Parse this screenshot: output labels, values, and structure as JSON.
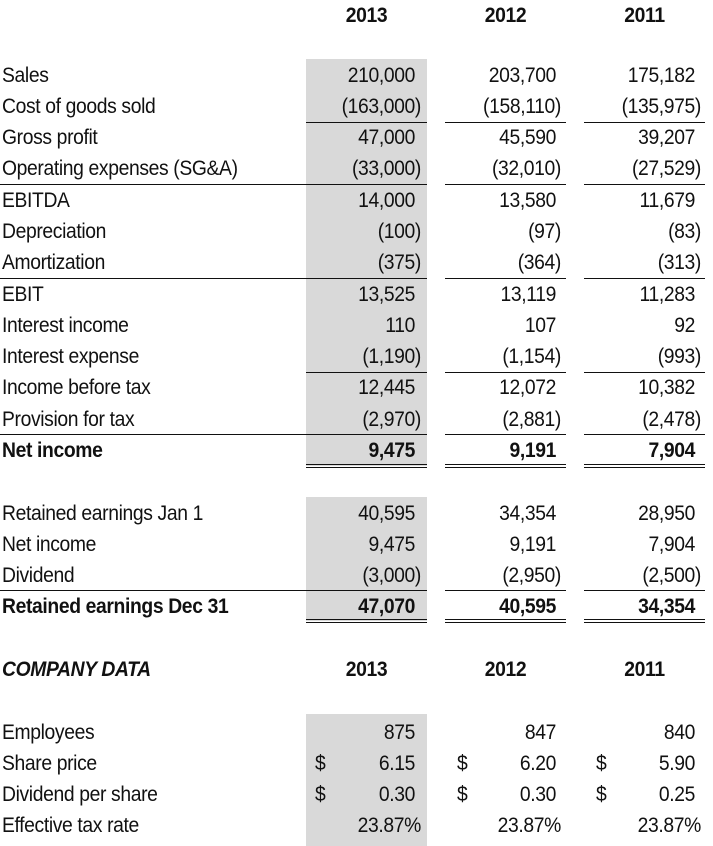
{
  "income_statement": {
    "years": [
      "2013",
      "2012",
      "2011"
    ],
    "rows": [
      {
        "label": "Sales",
        "values": [
          "210,000",
          "203,700",
          "175,182"
        ]
      },
      {
        "label": "Cost of goods sold",
        "values": [
          "(163,000)",
          "(158,110)",
          "(135,975)"
        ]
      },
      {
        "label": "Gross profit",
        "values": [
          "47,000",
          "45,590",
          "39,207"
        ]
      },
      {
        "label": "Operating expenses (SG&A)",
        "values": [
          "(33,000)",
          "(32,010)",
          "(27,529)"
        ]
      },
      {
        "label": "EBITDA",
        "values": [
          "14,000",
          "13,580",
          "11,679"
        ]
      },
      {
        "label": "Depreciation",
        "values": [
          "(100)",
          "(97)",
          "(83)"
        ]
      },
      {
        "label": "Amortization",
        "values": [
          "(375)",
          "(364)",
          "(313)"
        ]
      },
      {
        "label": "EBIT",
        "values": [
          "13,525",
          "13,119",
          "11,283"
        ]
      },
      {
        "label": "Interest income",
        "values": [
          "110",
          "107",
          "92"
        ]
      },
      {
        "label": "Interest expense",
        "values": [
          "(1,190)",
          "(1,154)",
          "(993)"
        ]
      },
      {
        "label": "Income before tax",
        "values": [
          "12,445",
          "12,072",
          "10,382"
        ]
      },
      {
        "label": "Provision for tax",
        "values": [
          "(2,970)",
          "(2,881)",
          "(2,478)"
        ]
      },
      {
        "label": "Net income",
        "values": [
          "9,475",
          "9,191",
          "7,904"
        ]
      }
    ]
  },
  "retained_earnings": {
    "rows": [
      {
        "label": "Retained earnings Jan 1",
        "values": [
          "40,595",
          "34,354",
          "28,950"
        ]
      },
      {
        "label": "Net income",
        "values": [
          "9,475",
          "9,191",
          "7,904"
        ]
      },
      {
        "label": "Dividend",
        "values": [
          "(3,000)",
          "(2,950)",
          "(2,500)"
        ]
      },
      {
        "label": "Retained earnings Dec 31",
        "values": [
          "47,070",
          "40,595",
          "34,354"
        ]
      }
    ]
  },
  "company_data": {
    "title": "COMPANY DATA",
    "years": [
      "2013",
      "2012",
      "2011"
    ],
    "currency_symbol": "$",
    "rows": [
      {
        "label": "Employees",
        "values": [
          "875",
          "847",
          "840"
        ]
      },
      {
        "label": "Share price",
        "values": [
          "6.15",
          "6.20",
          "5.90"
        ]
      },
      {
        "label": "Dividend per share",
        "values": [
          "0.30",
          "0.30",
          "0.25"
        ]
      },
      {
        "label": "Effective tax rate",
        "values": [
          "23.87%",
          "23.87%",
          "23.87%"
        ]
      }
    ]
  },
  "colors": {
    "highlight": "#d9d9d9",
    "text": "#111111"
  }
}
